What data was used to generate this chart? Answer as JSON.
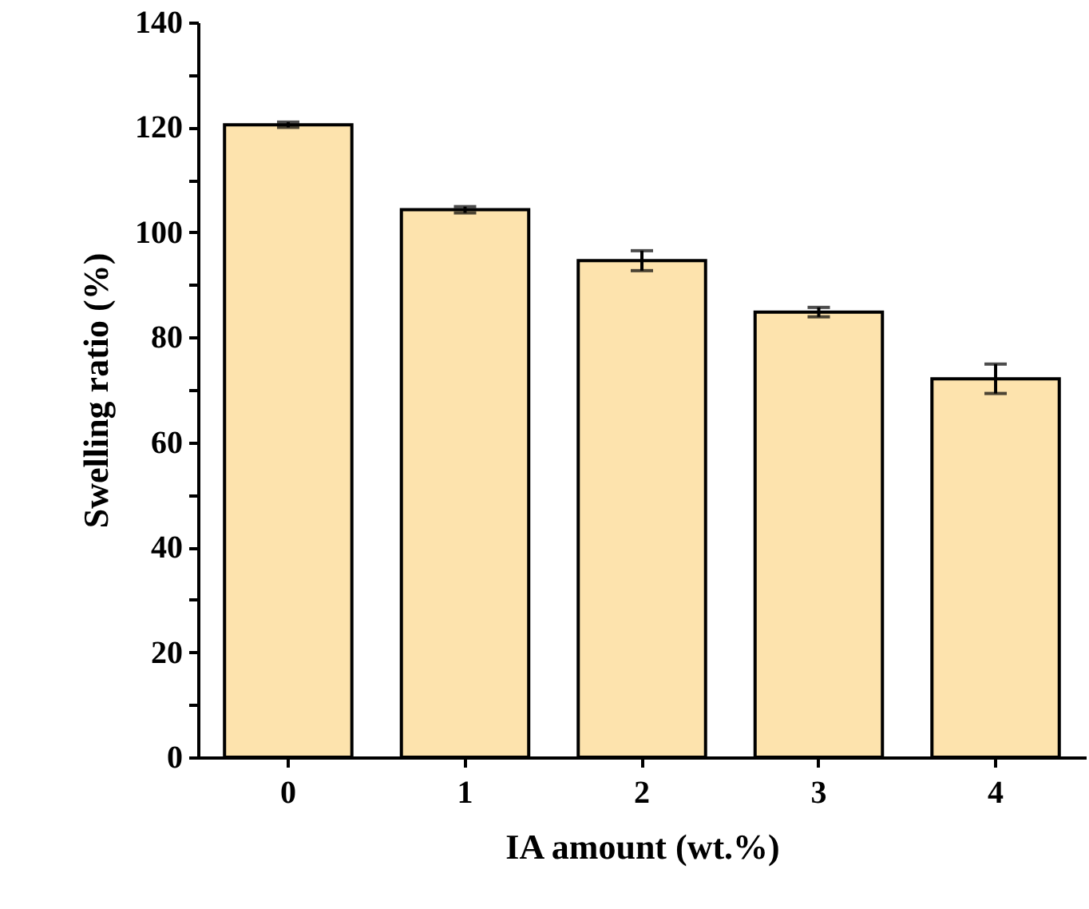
{
  "chart_data": {
    "type": "bar",
    "xlabel": "IA amount (wt.%)",
    "ylabel": "Swelling ratio (%)",
    "categories": [
      "0",
      "1",
      "2",
      "3",
      "4"
    ],
    "values": [
      120.5,
      104.3,
      94.6,
      84.8,
      72.1
    ],
    "errors": [
      0.5,
      0.6,
      1.9,
      0.9,
      2.8
    ],
    "color": "#fde3ad",
    "ylim": [
      0,
      140
    ],
    "yticks": [
      0,
      {
        "value": 10,
        "label": null
      },
      20,
      {
        "value": 30,
        "label": null
      },
      40,
      {
        "value": 50,
        "label": null
      },
      60,
      {
        "value": 70,
        "label": null
      },
      80,
      {
        "value": 90,
        "label": null
      },
      100,
      {
        "value": 110,
        "label": null
      },
      120,
      {
        "value": 130,
        "label": null
      },
      140
    ],
    "grid": false
  }
}
